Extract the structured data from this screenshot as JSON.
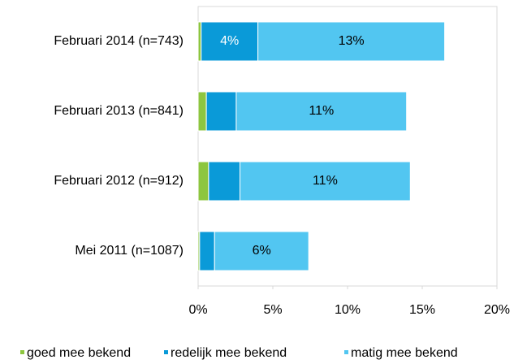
{
  "chart_data": {
    "type": "stacked-barh",
    "categories": [
      "Februari 2014 (n=743)",
      "Februari 2013 (n=841)",
      "Februari 2012 (n=912)",
      "Mei 2011 (n=1087)"
    ],
    "series": [
      {
        "name": "goed mee bekend",
        "color": "#8dc63f",
        "values": [
          0.2,
          0.55,
          0.7,
          0.1
        ],
        "value_labels": [
          null,
          null,
          null,
          null
        ]
      },
      {
        "name": "redelijk mee bekend",
        "color": "#0a9ad8",
        "values": [
          3.8,
          2.0,
          2.1,
          1.0
        ],
        "value_labels": [
          "4%",
          null,
          null,
          null
        ]
      },
      {
        "name": "matig mee bekend",
        "color": "#52c6f1",
        "values": [
          12.5,
          11.4,
          11.4,
          6.3
        ],
        "value_labels": [
          "13%",
          "11%",
          "11%",
          "6%"
        ]
      }
    ],
    "xlim": [
      0,
      20
    ],
    "xticks": [
      {
        "value": 0,
        "label": "0%"
      },
      {
        "value": 5,
        "label": "5%"
      },
      {
        "value": 10,
        "label": "10%"
      },
      {
        "value": 15,
        "label": "15%"
      },
      {
        "value": 20,
        "label": "20%"
      }
    ],
    "legend": "bottom"
  }
}
